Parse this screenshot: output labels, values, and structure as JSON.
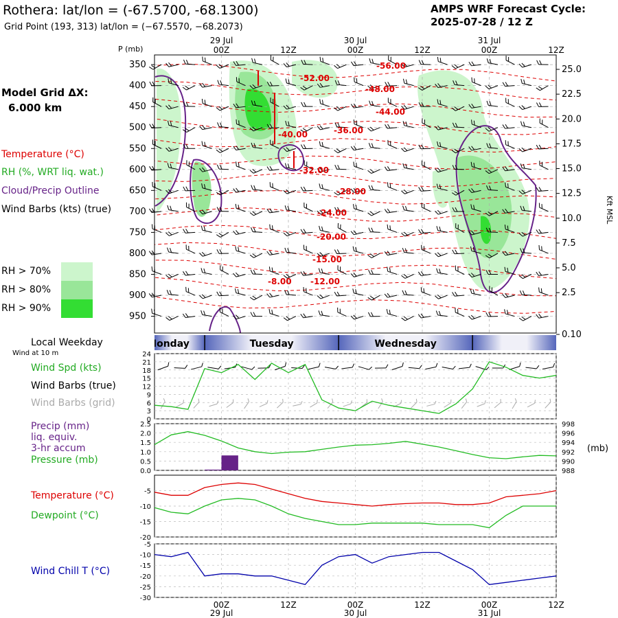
{
  "header": {
    "title": "Rothera:  lat/lon = (-67.5700, -68.1300)",
    "subtitle": "Grid Point (193, 313) lat/lon = (−67.5570, −68.2073)",
    "cycle_line1": "AMPS WRF Forecast Cycle:",
    "cycle_line2": "2025-07-28 / 12  Z"
  },
  "left_legend": {
    "grid_label": "Model Grid ΔX:",
    "grid_value": "6.000 km",
    "temperature": "Temperature (°C)",
    "rh": "RH (%, WRT liq. wat.)",
    "cloud": "Cloud/Precip Outline",
    "wind": "Wind Barbs (kts) (true)",
    "rh70": "RH > 70%",
    "rh80": "RH > 80%",
    "rh90": "RH > 90%",
    "colors": {
      "rh70": "#ccf5cc",
      "rh80": "#99e699",
      "rh90": "#33dd33",
      "temp": "#dd0000",
      "cloud": "#662288"
    }
  },
  "time_axis": {
    "labels": [
      "00Z",
      "12Z",
      "00Z",
      "12Z",
      "00Z",
      "12Z"
    ],
    "dates": [
      "29 Jul",
      "30 Jul",
      "31 Jul"
    ],
    "hours_from_start": [
      12,
      24,
      36,
      48,
      60,
      72
    ]
  },
  "main_panel": {
    "p_label": "P (mb)",
    "pressure_ticks": [
      "350",
      "400",
      "450",
      "500",
      "550",
      "600",
      "650",
      "700",
      "750",
      "800",
      "850",
      "900",
      "950"
    ],
    "kft_ticks": [
      "25.0",
      "22.5",
      "20.0",
      "17.5",
      "15.0",
      "12.5",
      "10.0",
      "7.5",
      "5.0",
      "2.5",
      "0.10"
    ],
    "kft_label": "Kft MSL",
    "temp_labels": [
      "-56.00",
      "-52.00",
      "-48.00",
      "-44.00",
      "-40.00",
      "-36.00",
      "-32.00",
      "-28.00",
      "-24.00",
      "-20.00",
      "-15.00",
      "-12.00",
      "-8.00"
    ]
  },
  "weekday_band": {
    "label": "Local Weekday",
    "sublabel": "Wind at 10 m",
    "days": [
      "Monday",
      "Tuesday",
      "Wednesday"
    ]
  },
  "chart_data": [
    {
      "type": "line",
      "name": "wind-speed",
      "labels": [
        "Wind Spd (kts)",
        "Wind Barbs (true)",
        "Wind Barbs (grid)"
      ],
      "yticks": [
        "0",
        "3",
        "6",
        "9",
        "12",
        "15",
        "18",
        "21",
        "24"
      ],
      "ylim": [
        0,
        24
      ],
      "x": [
        0,
        3,
        6,
        9,
        12,
        15,
        18,
        21,
        24,
        27,
        30,
        33,
        36,
        39,
        42,
        45,
        48,
        51,
        54,
        57,
        60,
        63,
        66,
        69,
        72
      ],
      "series": [
        {
          "name": "Wind Spd (kts)",
          "color": "#22bb22",
          "values": [
            5,
            4.5,
            3.5,
            18.5,
            17,
            20,
            14.5,
            20.5,
            17,
            20,
            7,
            4,
            3,
            6.5,
            5,
            4,
            3,
            2,
            5.5,
            11,
            21,
            19,
            16,
            15,
            16
          ]
        }
      ]
    },
    {
      "type": "bar+line",
      "name": "precip-pressure",
      "labels": [
        "Precip (mm)",
        "liq. equiv.",
        "3-hr accum",
        "Pressure (mb)"
      ],
      "right_label": "(mb)",
      "yticks_left": [
        "0.0",
        "0.5",
        "1.0",
        "1.5",
        "2.0",
        "2.5"
      ],
      "yticks_right": [
        "988",
        "990",
        "992",
        "994",
        "996",
        "998"
      ],
      "ylim_left": [
        0,
        2.5
      ],
      "ylim_right": [
        988,
        998
      ],
      "precip": {
        "x": [
          9,
          12
        ],
        "values": [
          0.04,
          0.8
        ],
        "color": "#662288"
      },
      "pressure": {
        "color": "#22bb22",
        "x": [
          0,
          3,
          6,
          9,
          12,
          15,
          18,
          21,
          24,
          27,
          30,
          33,
          36,
          39,
          42,
          45,
          48,
          51,
          54,
          57,
          60,
          63,
          66,
          69,
          72
        ],
        "values": [
          993.5,
          995.6,
          996.3,
          995.5,
          994.3,
          992.8,
          992.0,
          991.6,
          991.9,
          992.0,
          992.5,
          993.0,
          993.4,
          993.5,
          993.8,
          994.2,
          993.6,
          993.0,
          992.2,
          991.4,
          990.7,
          990.5,
          990.9,
          991.2,
          991.1
        ]
      }
    },
    {
      "type": "line",
      "name": "temperature-dewpoint",
      "labels": [
        "Temperature (°C)",
        "Dewpoint (°C)"
      ],
      "yticks": [
        "-20",
        "-15",
        "-10",
        "-5"
      ],
      "ylim": [
        -20,
        0
      ],
      "x": [
        0,
        3,
        6,
        9,
        12,
        15,
        18,
        21,
        24,
        27,
        30,
        33,
        36,
        39,
        42,
        45,
        48,
        51,
        54,
        57,
        60,
        63,
        66,
        69,
        72
      ],
      "series": [
        {
          "name": "Temperature (°C)",
          "color": "#dd0000",
          "values": [
            -5.5,
            -6.5,
            -6.5,
            -4,
            -3,
            -2.5,
            -3,
            -4.5,
            -6,
            -7.5,
            -8.5,
            -9,
            -9.5,
            -10,
            -9.5,
            -9.2,
            -9,
            -9,
            -9.5,
            -9.5,
            -9,
            -7,
            -6.5,
            -6,
            -5
          ]
        },
        {
          "name": "Dewpoint (°C)",
          "color": "#22bb22",
          "values": [
            -10.5,
            -12,
            -12.5,
            -10,
            -8,
            -7.5,
            -8,
            -10,
            -12.5,
            -14,
            -15,
            -16,
            -16,
            -15.5,
            -15.5,
            -15.5,
            -15.5,
            -16,
            -16,
            -16,
            -17,
            -13,
            -10,
            -10,
            -10
          ]
        }
      ]
    },
    {
      "type": "line",
      "name": "wind-chill",
      "labels": [
        "Wind Chill T (°C)"
      ],
      "yticks": [
        "-30",
        "-25",
        "-20",
        "-15",
        "-10",
        "-5"
      ],
      "ylim": [
        -30,
        -5
      ],
      "x": [
        0,
        3,
        6,
        9,
        12,
        15,
        18,
        21,
        24,
        27,
        30,
        33,
        36,
        39,
        42,
        45,
        48,
        51,
        54,
        57,
        60,
        63,
        66,
        69,
        72
      ],
      "series": [
        {
          "name": "Wind Chill T (°C)",
          "color": "#0000aa",
          "values": [
            -10,
            -11,
            -9,
            -20,
            -19,
            -19,
            -20,
            -20,
            -22,
            -24,
            -15,
            -11,
            -10,
            -14,
            -11,
            -10,
            -9,
            -9,
            -13,
            -17,
            -24,
            -23,
            -22,
            -21,
            -20
          ]
        }
      ]
    }
  ]
}
